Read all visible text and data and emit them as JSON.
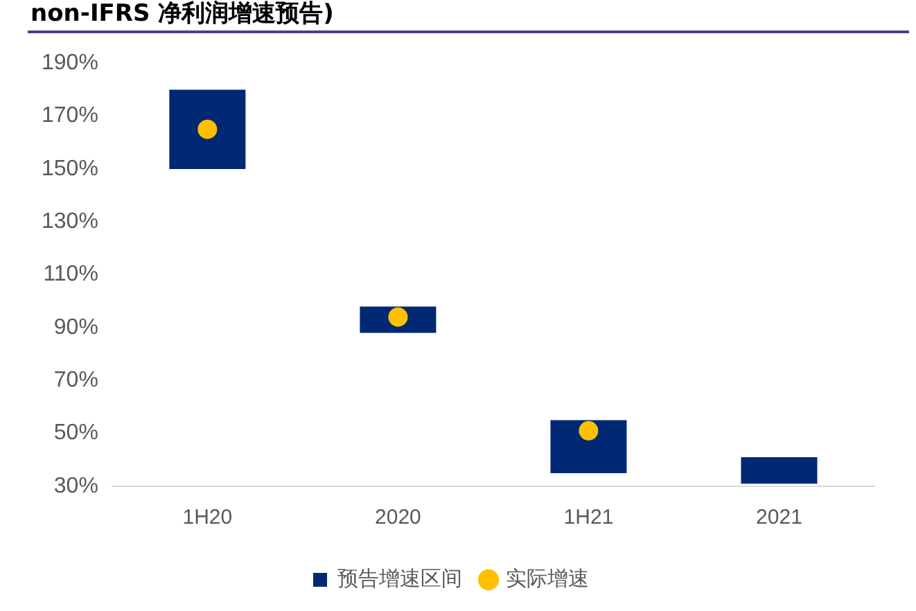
{
  "chart_data": {
    "type": "bar",
    "title": "non-IFRS 净利润增速预告)",
    "categories": [
      "1H20",
      "2020",
      "1H21",
      "2021"
    ],
    "series": [
      {
        "name": "预告增速区间",
        "type": "bar",
        "color": "#002873",
        "values": [
          30,
          10,
          20,
          10
        ],
        "base": [
          150,
          88,
          35,
          31
        ]
      },
      {
        "name": "实际增速",
        "type": "scatter",
        "color": "#ffc000",
        "values": [
          165,
          94,
          51,
          null
        ]
      }
    ],
    "ylim": [
      30,
      190
    ],
    "yticks": [
      {
        "value": 30,
        "label": "30%"
      },
      {
        "value": 50,
        "label": "50%"
      },
      {
        "value": 70,
        "label": "70%"
      },
      {
        "value": 90,
        "label": "90%"
      },
      {
        "value": 110,
        "label": "110%"
      },
      {
        "value": 130,
        "label": "130%"
      },
      {
        "value": 150,
        "label": "150%"
      },
      {
        "value": 170,
        "label": "170%"
      },
      {
        "value": 190,
        "label": "190%"
      }
    ],
    "grid": false,
    "legend": "bottom",
    "marker": "circle"
  }
}
